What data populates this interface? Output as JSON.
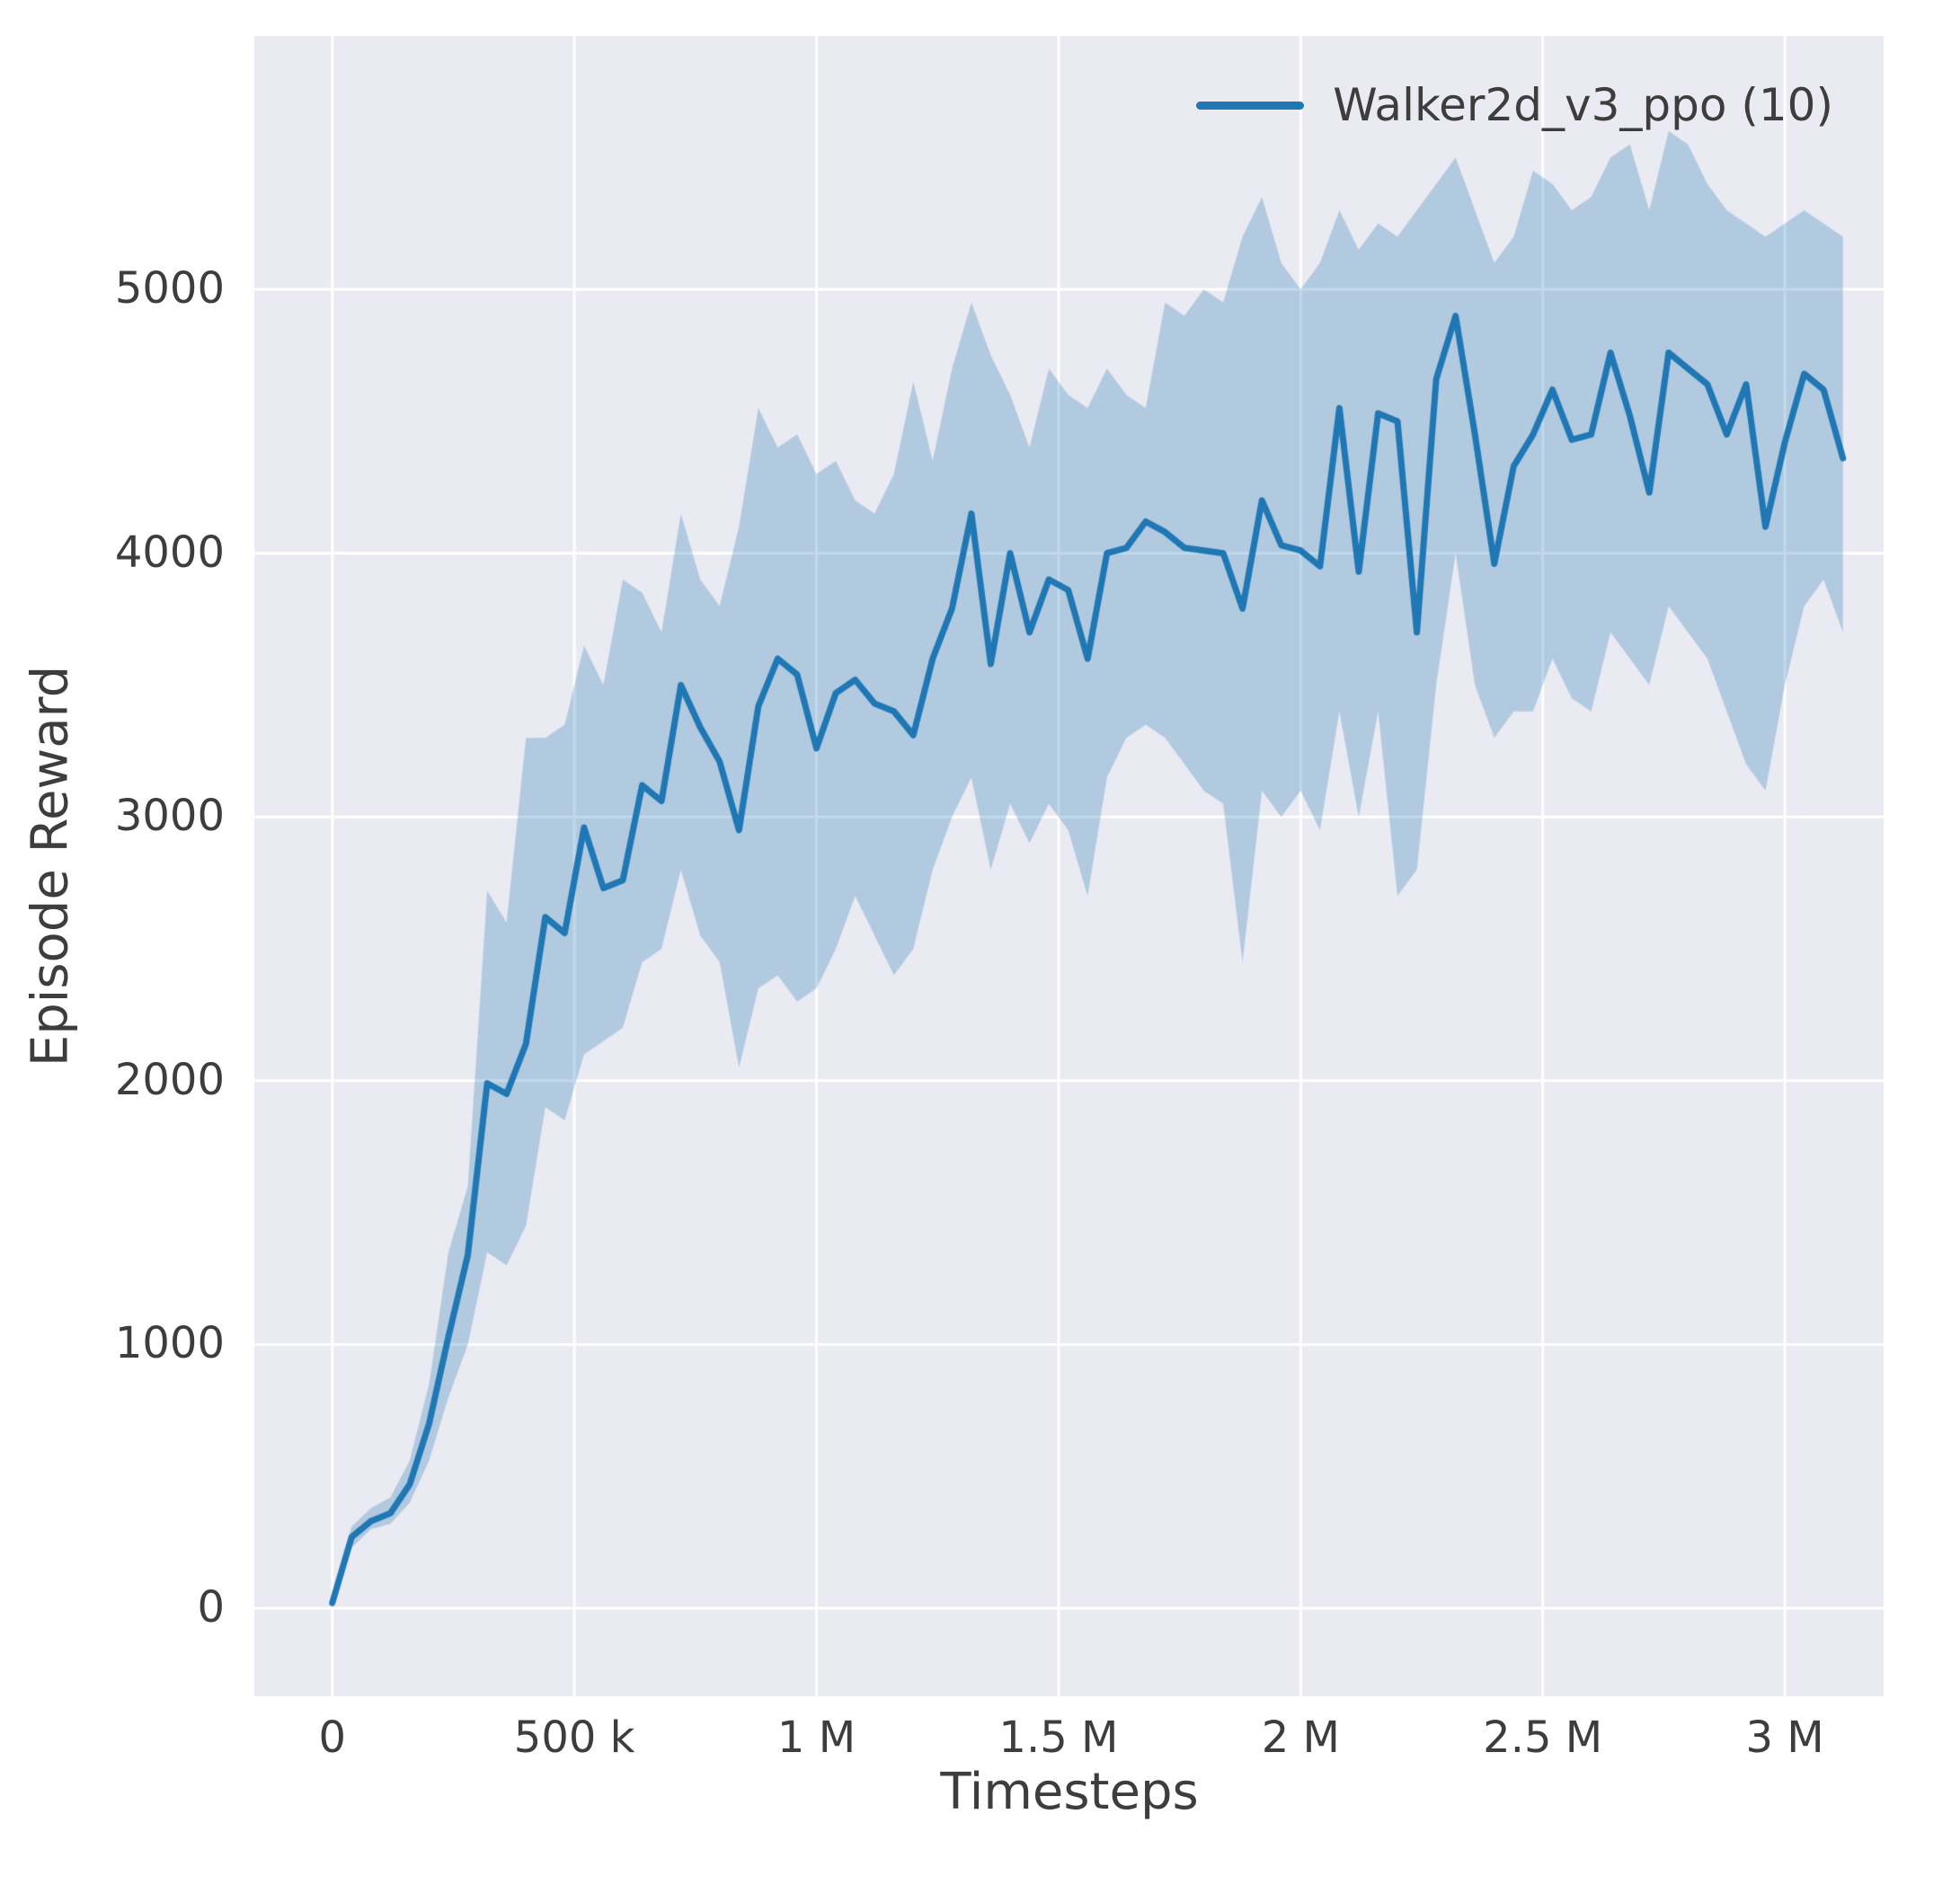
{
  "figure": {
    "background": "#ffffff"
  },
  "chart_data": {
    "type": "line",
    "title": "",
    "xlabel": "Timesteps",
    "ylabel": "Episode Reward",
    "grid": true,
    "legend_position": "upper right",
    "plot_background": "#eaeaf2",
    "grid_color": "#ffffff",
    "text_color": "#3d3d3d",
    "xlim": [
      -161000,
      3204000
    ],
    "ylim": [
      -334,
      5961
    ],
    "xticks": {
      "values": [
        0,
        500000,
        1000000,
        1500000,
        2000000,
        2500000,
        3000000
      ],
      "labels": [
        "0",
        "500 k",
        "1 M",
        "1.5 M",
        "2 M",
        "2.5 M",
        "3 M"
      ]
    },
    "yticks": {
      "values": [
        0,
        1000,
        2000,
        3000,
        4000,
        5000
      ],
      "labels": [
        "0",
        "1000",
        "2000",
        "3000",
        "4000",
        "5000"
      ]
    },
    "series": [
      {
        "name": "Walker2d_v3_ppo (10)",
        "color": "#1f77b4",
        "band_color": "rgba(31,119,180,0.28)",
        "line_width": 7,
        "x": [
          0,
          40000,
          80000,
          120000,
          160000,
          200000,
          240000,
          280000,
          320000,
          360000,
          400000,
          440000,
          480000,
          520000,
          560000,
          600000,
          640000,
          680000,
          720000,
          760000,
          800000,
          840000,
          880000,
          920000,
          960000,
          1000000,
          1040000,
          1080000,
          1120000,
          1160000,
          1200000,
          1240000,
          1280000,
          1320000,
          1360000,
          1400000,
          1440000,
          1480000,
          1520000,
          1560000,
          1600000,
          1640000,
          1680000,
          1720000,
          1760000,
          1800000,
          1840000,
          1880000,
          1920000,
          1960000,
          2000000,
          2040000,
          2080000,
          2120000,
          2160000,
          2200000,
          2240000,
          2280000,
          2320000,
          2360000,
          2400000,
          2440000,
          2480000,
          2520000,
          2560000,
          2600000,
          2640000,
          2680000,
          2720000,
          2760000,
          2800000,
          2840000,
          2880000,
          2920000,
          2960000,
          3000000,
          3040000,
          3080000,
          3120000
        ],
        "y": [
          20,
          270,
          330,
          360,
          470,
          700,
          1030,
          1340,
          1990,
          1950,
          2140,
          2620,
          2560,
          2960,
          2730,
          2760,
          3120,
          3060,
          3500,
          3340,
          3210,
          2950,
          3420,
          3600,
          3540,
          3260,
          3470,
          3520,
          3430,
          3400,
          3310,
          3600,
          3790,
          4150,
          3580,
          4000,
          3700,
          3900,
          3860,
          3600,
          4000,
          4020,
          4120,
          4080,
          4020,
          4010,
          4000,
          3790,
          4200,
          4030,
          4010,
          3950,
          4550,
          3930,
          4530,
          4500,
          3700,
          4660,
          4900,
          4450,
          3960,
          4330,
          4450,
          4620,
          4430,
          4450,
          4760,
          4520,
          4230,
          4760,
          4700,
          4640,
          4450,
          4640,
          4100,
          4420,
          4680,
          4620,
          4360
        ],
        "y_lower": [
          0,
          230,
          300,
          320,
          400,
          560,
          800,
          1000,
          1350,
          1300,
          1450,
          1900,
          1850,
          2100,
          2150,
          2200,
          2450,
          2500,
          2800,
          2550,
          2450,
          2050,
          2350,
          2400,
          2300,
          2350,
          2500,
          2700,
          2550,
          2400,
          2500,
          2800,
          3000,
          3150,
          2800,
          3050,
          2900,
          3050,
          2950,
          2700,
          3150,
          3300,
          3350,
          3300,
          3200,
          3100,
          3050,
          2450,
          3100,
          3000,
          3100,
          2950,
          3400,
          3000,
          3400,
          2700,
          2800,
          3500,
          4000,
          3500,
          3300,
          3400,
          3400,
          3600,
          3450,
          3400,
          3700,
          3600,
          3500,
          3800,
          3700,
          3600,
          3400,
          3200,
          3100,
          3500,
          3800,
          3900,
          3700
        ],
        "y_upper": [
          60,
          310,
          380,
          420,
          560,
          850,
          1350,
          1600,
          2720,
          2600,
          3300,
          3300,
          3350,
          3650,
          3500,
          3900,
          3850,
          3700,
          4150,
          3900,
          3800,
          4100,
          4550,
          4400,
          4450,
          4300,
          4350,
          4200,
          4150,
          4300,
          4650,
          4350,
          4700,
          4950,
          4750,
          4600,
          4400,
          4700,
          4600,
          4550,
          4700,
          4600,
          4550,
          4950,
          4900,
          5000,
          4950,
          5200,
          5350,
          5100,
          5000,
          5100,
          5300,
          5150,
          5250,
          5200,
          5300,
          5400,
          5500,
          5300,
          5100,
          5200,
          5450,
          5400,
          5300,
          5350,
          5500,
          5550,
          5300,
          5600,
          5550,
          5400,
          5300,
          5250,
          5200,
          5250,
          5300,
          5250,
          5200
        ]
      }
    ]
  }
}
